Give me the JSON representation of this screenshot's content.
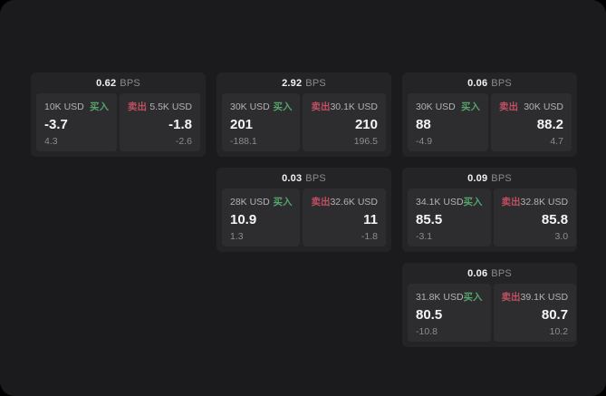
{
  "labels": {
    "bps_unit": "BPS",
    "buy": "买入",
    "sell": "卖出"
  },
  "colors": {
    "buy": "#55a36b",
    "sell": "#c04f60",
    "page_background": "#1b1b1d",
    "card_background": "#242427",
    "panel_background": "#2d2d30"
  },
  "cards": [
    {
      "bps": "0.62",
      "buy": {
        "amount": "10K USD",
        "price": "-3.7",
        "delta": "4.3"
      },
      "sell": {
        "amount": "5.5K USD",
        "price": "-1.8",
        "delta": "-2.6"
      }
    },
    {
      "bps": "2.92",
      "buy": {
        "amount": "30K USD",
        "price": "201",
        "delta": "-188.1"
      },
      "sell": {
        "amount": "30.1K USD",
        "price": "210",
        "delta": "196.5"
      }
    },
    {
      "bps": "0.06",
      "buy": {
        "amount": "30K USD",
        "price": "88",
        "delta": "-4.9"
      },
      "sell": {
        "amount": "30K USD",
        "price": "88.2",
        "delta": "4.7"
      }
    },
    {
      "bps": "0.03",
      "buy": {
        "amount": "28K USD",
        "price": "10.9",
        "delta": "1.3"
      },
      "sell": {
        "amount": "32.6K USD",
        "price": "11",
        "delta": "-1.8"
      }
    },
    {
      "bps": "0.09",
      "buy": {
        "amount": "34.1K USD",
        "price": "85.5",
        "delta": "-3.1"
      },
      "sell": {
        "amount": "32.8K USD",
        "price": "85.8",
        "delta": "3.0"
      }
    },
    {
      "bps": "0.06",
      "buy": {
        "amount": "31.8K USD",
        "price": "80.5",
        "delta": "-10.8"
      },
      "sell": {
        "amount": "39.1K USD",
        "price": "80.7",
        "delta": "10.2"
      }
    }
  ]
}
